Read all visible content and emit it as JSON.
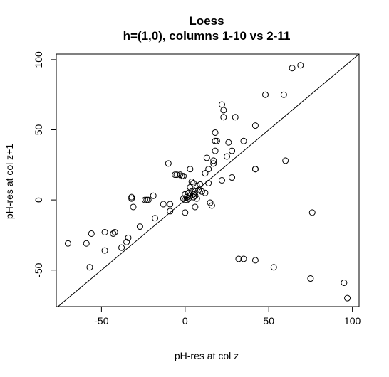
{
  "chart_data": {
    "type": "scatter",
    "title": "Loess",
    "subtitle": "h=(1,0), columns 1-10 vs 2-11",
    "xlabel": "pH-res at col z",
    "ylabel": "pH-res at col z+1",
    "xlim": [
      -77,
      104
    ],
    "ylim": [
      -76,
      104
    ],
    "xticks": [
      -50,
      0,
      50,
      100
    ],
    "yticks": [
      -50,
      0,
      50,
      100
    ],
    "grid": false,
    "legend": "none",
    "reference_line": "y = x",
    "points": [
      {
        "x": -70,
        "y": -31
      },
      {
        "x": -59,
        "y": -31
      },
      {
        "x": -57,
        "y": -48
      },
      {
        "x": -56,
        "y": -24
      },
      {
        "x": -48,
        "y": -36
      },
      {
        "x": -48,
        "y": -23
      },
      {
        "x": -43,
        "y": -24
      },
      {
        "x": -42,
        "y": -23
      },
      {
        "x": -38,
        "y": -34
      },
      {
        "x": -35,
        "y": -30
      },
      {
        "x": -34,
        "y": -27
      },
      {
        "x": -32,
        "y": 1
      },
      {
        "x": -32,
        "y": 2
      },
      {
        "x": -31,
        "y": -5
      },
      {
        "x": -27,
        "y": -19
      },
      {
        "x": -24,
        "y": 0
      },
      {
        "x": -23,
        "y": 0
      },
      {
        "x": -22,
        "y": 0
      },
      {
        "x": -19,
        "y": 3
      },
      {
        "x": -18,
        "y": -13
      },
      {
        "x": -13,
        "y": -3
      },
      {
        "x": -10,
        "y": 26
      },
      {
        "x": -9,
        "y": -8
      },
      {
        "x": -9,
        "y": -3
      },
      {
        "x": -6,
        "y": 18
      },
      {
        "x": -5,
        "y": 18
      },
      {
        "x": -3,
        "y": 18
      },
      {
        "x": -2,
        "y": 17
      },
      {
        "x": -1,
        "y": 17
      },
      {
        "x": -1,
        "y": 1
      },
      {
        "x": 0,
        "y": 0
      },
      {
        "x": 0,
        "y": 4
      },
      {
        "x": 0,
        "y": -9
      },
      {
        "x": 1,
        "y": 2
      },
      {
        "x": 1,
        "y": 0
      },
      {
        "x": 2,
        "y": 1
      },
      {
        "x": 2,
        "y": 5
      },
      {
        "x": 3,
        "y": 3
      },
      {
        "x": 3,
        "y": 22
      },
      {
        "x": 3,
        "y": 9
      },
      {
        "x": 4,
        "y": 6
      },
      {
        "x": 4,
        "y": 13
      },
      {
        "x": 5,
        "y": 4
      },
      {
        "x": 5,
        "y": 2
      },
      {
        "x": 5,
        "y": 12
      },
      {
        "x": 6,
        "y": 6
      },
      {
        "x": 6,
        "y": 3
      },
      {
        "x": 6,
        "y": -5
      },
      {
        "x": 7,
        "y": 1
      },
      {
        "x": 7,
        "y": 10
      },
      {
        "x": 8,
        "y": 7
      },
      {
        "x": 9,
        "y": 11
      },
      {
        "x": 10,
        "y": 6
      },
      {
        "x": 12,
        "y": 5
      },
      {
        "x": 12,
        "y": 19
      },
      {
        "x": 13,
        "y": 30
      },
      {
        "x": 14,
        "y": 22
      },
      {
        "x": 14,
        "y": 12
      },
      {
        "x": 15,
        "y": -2
      },
      {
        "x": 16,
        "y": -4
      },
      {
        "x": 17,
        "y": 28
      },
      {
        "x": 17,
        "y": 26
      },
      {
        "x": 18,
        "y": 35
      },
      {
        "x": 18,
        "y": 42
      },
      {
        "x": 18,
        "y": 48
      },
      {
        "x": 19,
        "y": 42
      },
      {
        "x": 22,
        "y": 68
      },
      {
        "x": 22,
        "y": 14
      },
      {
        "x": 23,
        "y": 64
      },
      {
        "x": 23,
        "y": 59
      },
      {
        "x": 25,
        "y": 31
      },
      {
        "x": 26,
        "y": 41
      },
      {
        "x": 28,
        "y": 16
      },
      {
        "x": 28,
        "y": 35
      },
      {
        "x": 30,
        "y": 59
      },
      {
        "x": 32,
        "y": -42
      },
      {
        "x": 35,
        "y": -42
      },
      {
        "x": 35,
        "y": 42
      },
      {
        "x": 42,
        "y": 22
      },
      {
        "x": 42,
        "y": 53
      },
      {
        "x": 42,
        "y": 22
      },
      {
        "x": 42,
        "y": -43
      },
      {
        "x": 48,
        "y": 75
      },
      {
        "x": 53,
        "y": -48
      },
      {
        "x": 59,
        "y": 75
      },
      {
        "x": 60,
        "y": 28
      },
      {
        "x": 64,
        "y": 94
      },
      {
        "x": 69,
        "y": 96
      },
      {
        "x": 75,
        "y": -56
      },
      {
        "x": 76,
        "y": -9
      },
      {
        "x": 95,
        "y": -59
      },
      {
        "x": 97,
        "y": -70
      }
    ]
  }
}
